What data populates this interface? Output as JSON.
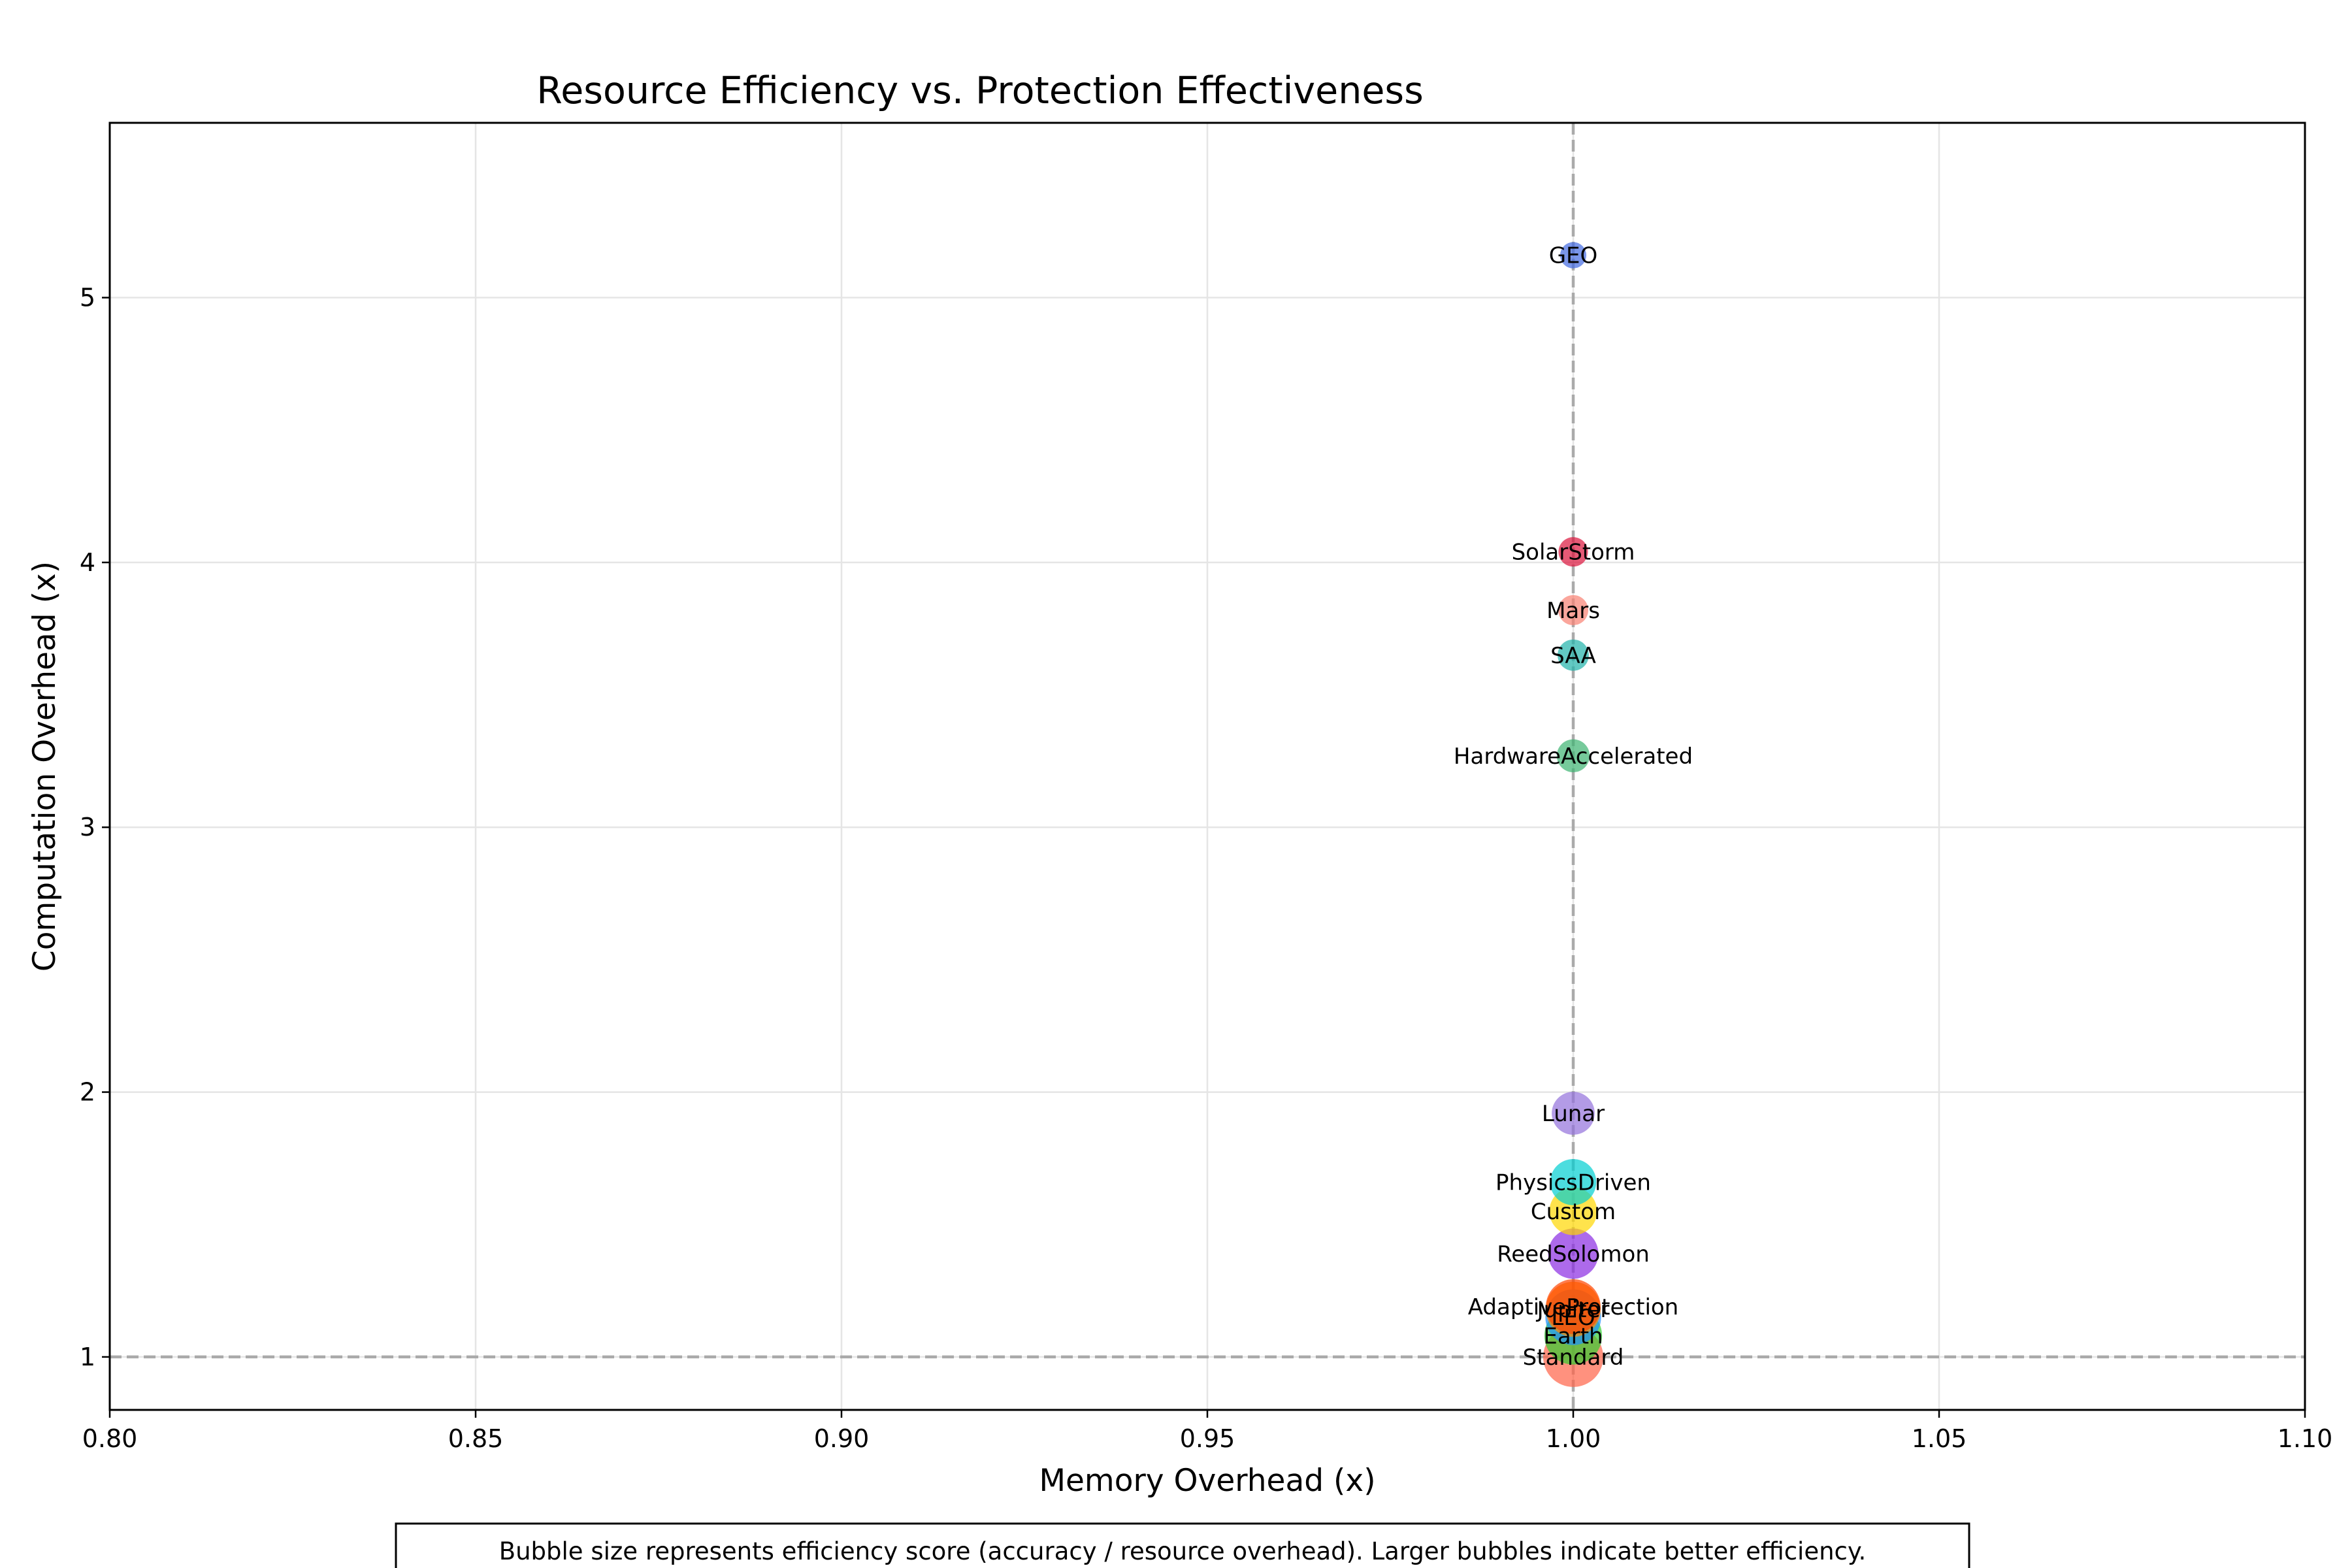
{
  "chart_data": {
    "type": "scatter",
    "title": "Resource Efficiency vs. Protection Effectiveness",
    "xlabel": "Memory Overhead (x)",
    "ylabel": "Computation Overhead (x)",
    "xlim": [
      0.8,
      1.1
    ],
    "ylim": [
      0.8,
      5.66
    ],
    "xticks": [
      "0.80",
      "0.85",
      "0.90",
      "0.95",
      "1.00",
      "1.05",
      "1.10"
    ],
    "yticks": [
      "1",
      "2",
      "3",
      "4",
      "5"
    ],
    "grid": true,
    "reference_lines": [
      {
        "axis": "x",
        "value": 1.0,
        "style": "dashed"
      },
      {
        "axis": "y",
        "value": 1.0,
        "style": "dashed"
      }
    ],
    "points": [
      {
        "label": "GEO",
        "x": 1.0,
        "y": 5.16,
        "efficiency": 0.19,
        "color": "#4169E1"
      },
      {
        "label": "SolarStorm",
        "x": 1.0,
        "y": 4.04,
        "efficiency": 0.24,
        "color": "#DC143C"
      },
      {
        "label": "Mars",
        "x": 1.0,
        "y": 3.82,
        "efficiency": 0.25,
        "color": "#FA8072"
      },
      {
        "label": "SAA",
        "x": 1.0,
        "y": 3.65,
        "efficiency": 0.27,
        "color": "#20B2AA"
      },
      {
        "label": "HardwareAccelerated",
        "x": 1.0,
        "y": 3.27,
        "efficiency": 0.3,
        "color": "#3CB371"
      },
      {
        "label": "Lunar",
        "x": 1.0,
        "y": 1.92,
        "efficiency": 0.51,
        "color": "#9370DB"
      },
      {
        "label": "PhysicsDriven",
        "x": 1.0,
        "y": 1.66,
        "efficiency": 0.59,
        "color": "#00CED1"
      },
      {
        "label": "Custom",
        "x": 1.0,
        "y": 1.55,
        "efficiency": 0.63,
        "color": "#FFD700"
      },
      {
        "label": "ReedSolomon",
        "x": 1.0,
        "y": 1.39,
        "efficiency": 0.7,
        "color": "#8A2BE2"
      },
      {
        "label": "AdaptiveProtection",
        "x": 1.0,
        "y": 1.19,
        "efficiency": 0.83,
        "color": "#FF4500"
      },
      {
        "label": "Jupiter",
        "x": 1.0,
        "y": 1.18,
        "efficiency": 0.84,
        "color": "#FF8C00"
      },
      {
        "label": "LEO",
        "x": 1.0,
        "y": 1.15,
        "efficiency": 0.86,
        "color": "#1E90FF"
      },
      {
        "label": "Earth",
        "x": 1.0,
        "y": 1.08,
        "efficiency": 0.92,
        "color": "#32CD32"
      },
      {
        "label": "Standard",
        "x": 1.0,
        "y": 1.0,
        "efficiency": 1.0,
        "color": "#FF6347"
      }
    ],
    "caption": "Bubble size represents efficiency score (accuracy / resource overhead). Larger bubbles indicate better efficiency."
  }
}
